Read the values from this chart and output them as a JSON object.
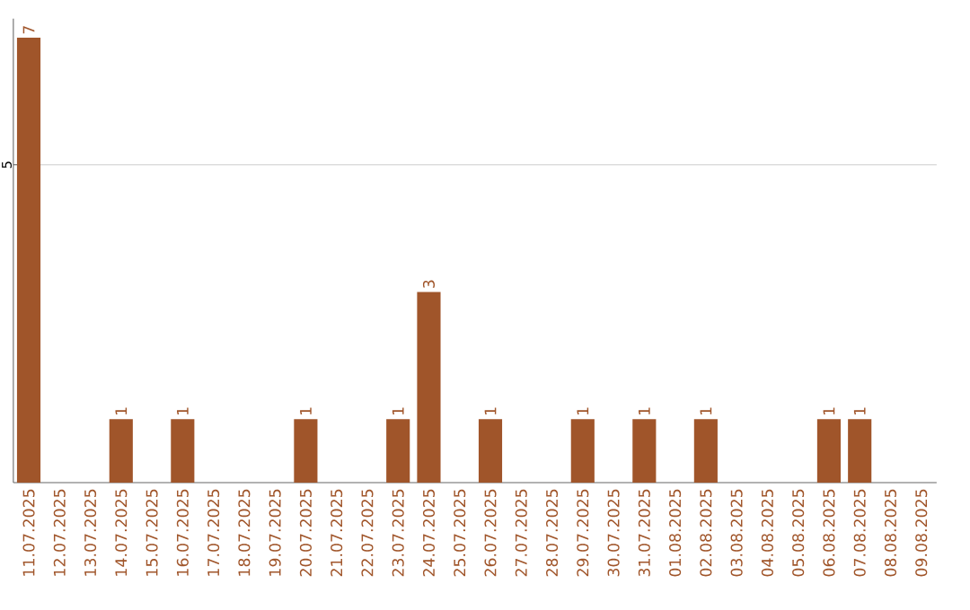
{
  "chart_data": {
    "type": "bar",
    "categories": [
      "11.07.2025",
      "12.07.2025",
      "13.07.2025",
      "14.07.2025",
      "15.07.2025",
      "16.07.2025",
      "17.07.2025",
      "18.07.2025",
      "19.07.2025",
      "20.07.2025",
      "21.07.2025",
      "22.07.2025",
      "23.07.2025",
      "24.07.2025",
      "25.07.2025",
      "26.07.2025",
      "27.07.2025",
      "28.07.2025",
      "29.07.2025",
      "30.07.2025",
      "31.07.2025",
      "01.08.2025",
      "02.08.2025",
      "03.08.2025",
      "04.08.2025",
      "05.08.2025",
      "06.08.2025",
      "07.08.2025",
      "08.08.2025",
      "09.08.2025"
    ],
    "values": [
      7,
      0,
      0,
      1,
      0,
      1,
      0,
      0,
      0,
      1,
      0,
      0,
      1,
      3,
      0,
      1,
      0,
      0,
      1,
      0,
      1,
      0,
      1,
      0,
      0,
      0,
      1,
      1,
      0,
      0
    ],
    "value_labels": [
      "7",
      null,
      null,
      "1",
      null,
      "1",
      null,
      null,
      null,
      "1",
      null,
      null,
      "1",
      "3",
      null,
      "1",
      null,
      null,
      "1",
      null,
      "1",
      null,
      "1",
      null,
      null,
      null,
      "1",
      "1",
      null,
      null
    ],
    "color": "#a0552a",
    "ylim": [
      0,
      7.3
    ],
    "yticks": [
      5
    ],
    "grid": "y"
  }
}
